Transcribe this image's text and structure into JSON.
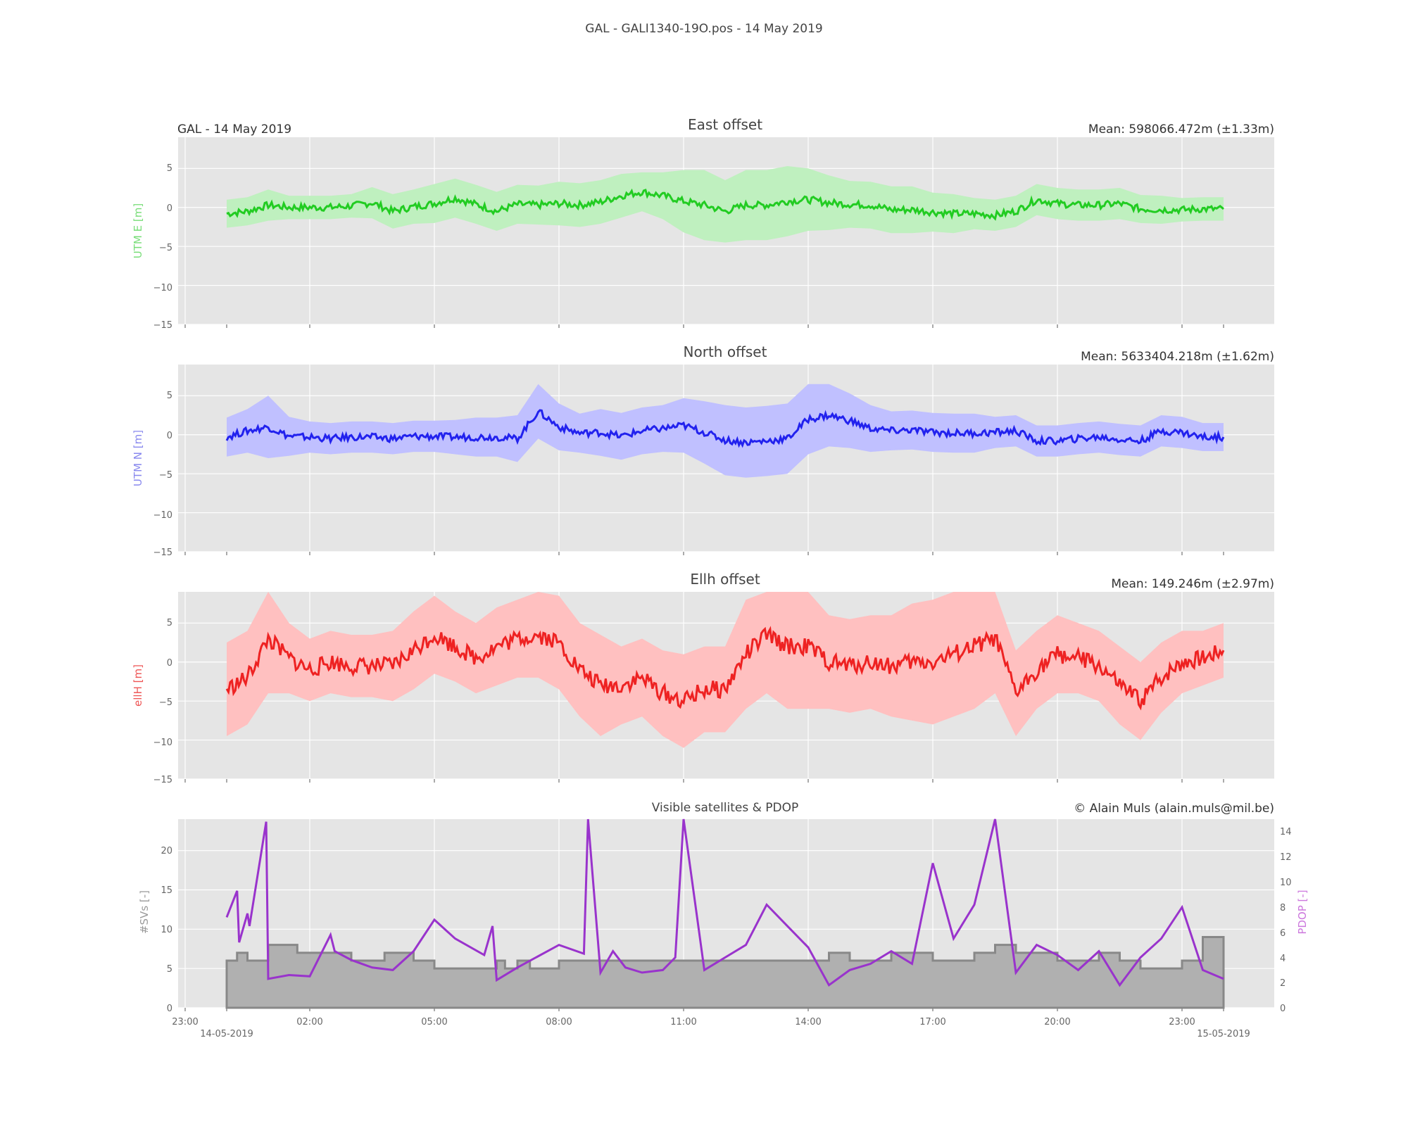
{
  "suptitle": "GAL - GALI1340-19O.pos - 14 May 2019",
  "colors": {
    "east_line": "#22cc22",
    "east_band": "#bff0bf",
    "north_line": "#2222ee",
    "north_band": "#c0c0ff",
    "ellh_line": "#ee2222",
    "ellh_band": "#ffc0c0",
    "pdop_line": "#9933cc",
    "sv_fill": "#b0b0b0",
    "sv_edge": "#888888",
    "axes_bg": "#e5e5e5",
    "grid": "#ffffff"
  },
  "chart_data": [
    {
      "type": "line",
      "title": "East offset",
      "left_note": "GAL - 14 May 2019",
      "right_note": "Mean: 598066.472m (±1.33m)",
      "ylabel": "UTM E [m]",
      "ylim": [
        -15,
        9
      ],
      "yticks": [
        "5",
        "0",
        "−5",
        "−10",
        "−15"
      ],
      "grid": true,
      "series": [
        {
          "x_hours": [
            0,
            0.5,
            1,
            1.5,
            2,
            2.5,
            3,
            3.5,
            4,
            4.5,
            5,
            5.5,
            6,
            6.5,
            7,
            7.5,
            8,
            8.5,
            9,
            9.5,
            10,
            10.5,
            11,
            11.5,
            12,
            12.5,
            13,
            13.5,
            14,
            14.5,
            15,
            15.5,
            16,
            16.5,
            17,
            17.5,
            18,
            18.5,
            19,
            19.5,
            20,
            20.5,
            21,
            21.5,
            22,
            22.5,
            23,
            23.5,
            24
          ],
          "values": [
            -0.8,
            -0.5,
            0.3,
            0,
            0,
            0,
            0.2,
            0.6,
            -0.5,
            0.1,
            0.5,
            1.2,
            0.4,
            -0.5,
            0.4,
            0.3,
            0.5,
            0.3,
            0.7,
            1.5,
            2.0,
            1.5,
            0.8,
            0.3,
            -0.5,
            0.3,
            0.3,
            0.8,
            1.0,
            0.6,
            0.4,
            0.3,
            -0.3,
            -0.3,
            -0.6,
            -0.8,
            -0.8,
            -1.0,
            -0.5,
            1.0,
            0.5,
            0.3,
            0.3,
            0.5,
            -0.2,
            -0.3,
            -0.3,
            -0.2,
            -0.2
          ],
          "band": [
            1.8,
            1.8,
            2.0,
            1.5,
            1.5,
            1.5,
            1.5,
            2.0,
            2.2,
            2.2,
            2.5,
            2.5,
            2.5,
            2.5,
            2.5,
            2.5,
            2.8,
            2.8,
            2.8,
            2.8,
            2.5,
            3.0,
            4.0,
            4.5,
            4.0,
            4.5,
            4.5,
            4.5,
            4.0,
            3.5,
            3.0,
            3.0,
            3.0,
            3.0,
            2.5,
            2.5,
            2.0,
            2.0,
            2.0,
            2.0,
            2.0,
            2.0,
            2.0,
            2.0,
            1.8,
            1.8,
            1.5,
            1.5,
            1.5
          ]
        }
      ]
    },
    {
      "type": "line",
      "title": "North offset",
      "right_note": "Mean: 5633404.218m (±1.62m)",
      "ylabel": "UTM N [m]",
      "ylim": [
        -15,
        9
      ],
      "yticks": [
        "5",
        "0",
        "−5",
        "−10",
        "−15"
      ],
      "grid": true,
      "series": [
        {
          "x_hours": [
            0,
            0.5,
            1,
            1.5,
            2,
            2.5,
            3,
            3.5,
            4,
            4.5,
            5,
            5.5,
            6,
            6.5,
            7,
            7.5,
            8,
            8.5,
            9,
            9.5,
            10,
            10.5,
            11,
            11.5,
            12,
            12.5,
            13,
            13.5,
            14,
            14.5,
            15,
            15.5,
            16,
            16.5,
            17,
            17.5,
            18,
            18.5,
            19,
            19.5,
            20,
            20.5,
            21,
            21.5,
            22,
            22.5,
            23,
            23.5,
            24
          ],
          "values": [
            -0.3,
            0.5,
            1.0,
            -0.2,
            -0.3,
            -0.5,
            -0.3,
            -0.3,
            -0.5,
            -0.2,
            -0.2,
            -0.3,
            -0.3,
            -0.3,
            -0.5,
            3.0,
            1.0,
            0.2,
            0.3,
            -0.2,
            0.5,
            0.8,
            1.2,
            0.3,
            -0.7,
            -1.0,
            -0.8,
            -0.5,
            2.0,
            2.5,
            1.8,
            0.8,
            0.5,
            0.6,
            0.3,
            0.2,
            0.2,
            0.3,
            0.5,
            -0.8,
            -0.8,
            -0.5,
            -0.3,
            -0.6,
            -0.8,
            0.5,
            0.3,
            -0.3,
            -0.3
          ],
          "band": [
            2.5,
            2.8,
            4.0,
            2.5,
            2.0,
            2.0,
            2.0,
            2.0,
            2.0,
            2.0,
            2.0,
            2.2,
            2.5,
            2.5,
            3.0,
            3.5,
            3.0,
            2.5,
            3.0,
            3.0,
            3.0,
            3.0,
            3.5,
            4.0,
            4.5,
            4.5,
            4.5,
            4.5,
            4.5,
            4.0,
            3.5,
            3.0,
            2.5,
            2.5,
            2.5,
            2.5,
            2.5,
            2.0,
            2.0,
            2.0,
            2.0,
            2.0,
            2.0,
            2.0,
            2.0,
            2.0,
            2.0,
            1.8,
            1.8
          ]
        }
      ]
    },
    {
      "type": "line",
      "title": "Ellh offset",
      "right_note": "Mean: 149.246m (±2.97m)",
      "ylabel": "ellH [m]",
      "ylim": [
        -15,
        9
      ],
      "yticks": [
        "5",
        "0",
        "−5",
        "−10",
        "−15"
      ],
      "grid": true,
      "series": [
        {
          "x_hours": [
            0,
            0.5,
            1,
            1.5,
            2,
            2.5,
            3,
            3.5,
            4,
            4.5,
            5,
            5.5,
            6,
            6.5,
            7,
            7.5,
            8,
            8.5,
            9,
            9.5,
            10,
            10.5,
            11,
            11.5,
            12,
            12.5,
            13,
            13.5,
            14,
            14.5,
            15,
            15.5,
            16,
            16.5,
            17,
            17.5,
            18,
            18.5,
            19,
            19.5,
            20,
            20.5,
            21,
            21.5,
            22,
            22.5,
            23,
            23.5,
            24
          ],
          "values": [
            -3.5,
            -2.0,
            3.0,
            0.5,
            -1.0,
            0,
            -0.5,
            -0.5,
            -0.5,
            1.5,
            3.5,
            2.0,
            0.5,
            2.0,
            3.0,
            3.5,
            2.5,
            -1.0,
            -3.0,
            -3.0,
            -2.0,
            -4.0,
            -5.0,
            -3.5,
            -3.5,
            1.0,
            3.5,
            2.0,
            2.0,
            0,
            -0.5,
            0,
            -0.5,
            0,
            0,
            1.0,
            2.0,
            3.0,
            -4.0,
            -1.0,
            1.0,
            0.5,
            -0.5,
            -3.0,
            -5.0,
            -2.0,
            0,
            0.5,
            1.5
          ],
          "band": [
            6.0,
            6.0,
            7.0,
            4.5,
            4.0,
            4.0,
            4.0,
            4.0,
            4.5,
            5.0,
            5.0,
            4.5,
            4.5,
            5.0,
            5.0,
            5.5,
            6.0,
            6.0,
            6.5,
            5.0,
            5.0,
            5.5,
            6.0,
            5.5,
            5.5,
            7.0,
            7.5,
            8.0,
            8.0,
            6.0,
            6.0,
            6.0,
            6.5,
            7.5,
            8.0,
            8.0,
            8.0,
            7.0,
            5.5,
            5.0,
            5.0,
            4.5,
            4.5,
            5.0,
            5.0,
            4.5,
            4.0,
            3.5,
            3.5
          ]
        }
      ]
    },
    {
      "type": "area",
      "title": "Visible satellites & PDOP",
      "right_note": "© Alain Muls (alain.muls@mil.be)",
      "ylabel": "#SVs [-]",
      "ylabel_right": "PDOP [-]",
      "ylim": [
        0,
        24
      ],
      "ylim_right": [
        0,
        15
      ],
      "yticks": [
        "20",
        "15",
        "10",
        "5",
        "0"
      ],
      "yticks_right": [
        "14",
        "12",
        "10",
        "8",
        "6",
        "4",
        "2",
        "0"
      ],
      "xticks": [
        "23:00",
        "02:00",
        "05:00",
        "08:00",
        "11:00",
        "14:00",
        "17:00",
        "20:00",
        "23:00"
      ],
      "date_left": "14-05-2019",
      "date_right": "15-05-2019",
      "grid": true,
      "series": [
        {
          "name": "#SVs",
          "x_hours": [
            0,
            0.25,
            0.5,
            1,
            1.7,
            2.2,
            3,
            3.8,
            4.5,
            5,
            6,
            6.5,
            6.7,
            7,
            7.3,
            8,
            9,
            10,
            11,
            12,
            13,
            14,
            14.5,
            15,
            15.5,
            16,
            17,
            18,
            18.5,
            19,
            20,
            21,
            21.5,
            22,
            22.5,
            23,
            23.5,
            24
          ],
          "values": [
            6,
            7,
            6,
            8,
            7,
            7,
            6,
            7,
            6,
            5,
            5,
            6,
            5,
            6,
            5,
            6,
            6,
            6,
            6,
            6,
            6,
            6,
            7,
            6,
            6,
            7,
            6,
            7,
            8,
            7,
            6,
            7,
            6,
            5,
            5,
            6,
            9,
            8
          ]
        },
        {
          "name": "PDOP",
          "x_hours": [
            0,
            0.25,
            0.3,
            0.5,
            0.55,
            0.95,
            1.0,
            1.5,
            2.0,
            2.5,
            2.6,
            3.0,
            3.5,
            4.0,
            4.5,
            5.0,
            5.5,
            6.2,
            6.4,
            6.5,
            7.0,
            8.0,
            8.6,
            8.7,
            9.0,
            9.3,
            9.6,
            10.0,
            10.5,
            10.8,
            11.0,
            11.5,
            12.0,
            12.5,
            13.0,
            13.5,
            14.0,
            14.5,
            15.0,
            15.5,
            16.0,
            16.5,
            17.0,
            17.5,
            18.0,
            18.5,
            19.0,
            19.5,
            20.0,
            20.5,
            21.0,
            21.5,
            22.0,
            22.5,
            23.0,
            23.5,
            24.0
          ],
          "values": [
            7.2,
            9.3,
            5.2,
            7.5,
            6.5,
            14.8,
            2.3,
            2.6,
            2.5,
            5.8,
            4.5,
            3.8,
            3.2,
            3.0,
            4.5,
            7.0,
            5.5,
            4.2,
            6.5,
            2.2,
            3.2,
            5.0,
            4.3,
            15,
            2.8,
            4.5,
            3.2,
            2.8,
            3.0,
            4.0,
            15,
            3.0,
            4.0,
            5.0,
            8.2,
            6.5,
            4.8,
            1.8,
            3.0,
            3.5,
            4.5,
            3.5,
            11.5,
            5.5,
            8.2,
            15,
            2.8,
            5.0,
            4.2,
            3.0,
            4.5,
            1.8,
            4.0,
            5.5,
            8.0,
            3.0,
            2.3
          ]
        }
      ]
    }
  ]
}
